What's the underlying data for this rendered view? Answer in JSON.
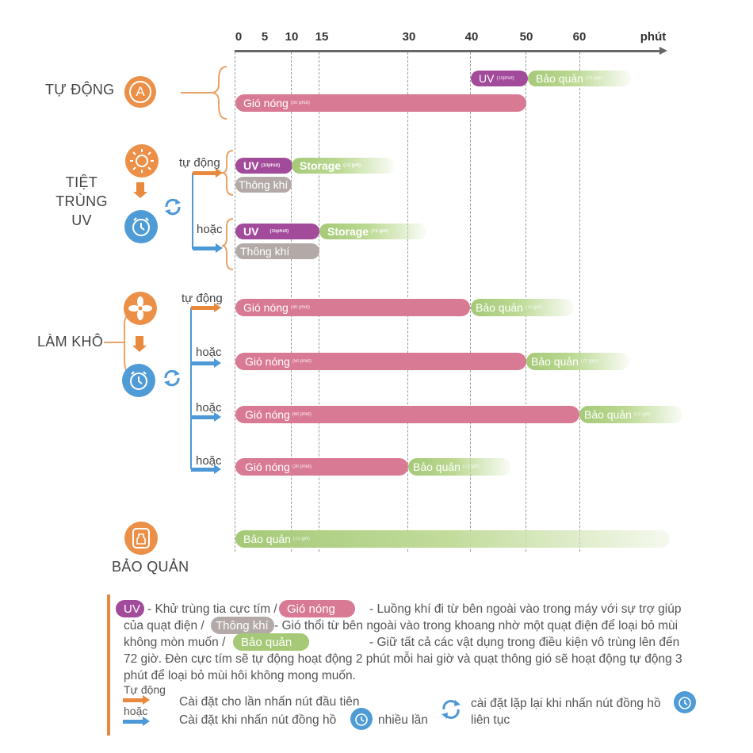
{
  "axis": {
    "ticks": [
      "0",
      "5",
      "10",
      "15",
      "30",
      "40",
      "50",
      "60"
    ],
    "unit": "phút"
  },
  "categories": {
    "auto": "TỰ ĐỘNG",
    "auto_icon_letter": "A",
    "sterilize_line1": "TIỆT TRÙNG",
    "sterilize_line2": "UV",
    "dry": "LÀM KHÔ",
    "storage": "BẢO QUẢN"
  },
  "branch_labels": {
    "auto": "tự động",
    "or": "hoặc"
  },
  "bars": {
    "auto_uv": {
      "label": "UV",
      "sub": "(10phút)"
    },
    "auto_storage": {
      "label": "Bảo quản",
      "sub": "(72 giờ)"
    },
    "auto_hot": {
      "label": "Gió nóng",
      "sub": "(50 phút)"
    },
    "s1_uv": {
      "label": "UV",
      "sub": "(10phút)"
    },
    "s1_storage": {
      "label": "Storage",
      "sub": "(72 giờ)"
    },
    "s1_vent": {
      "label": "Thông khí"
    },
    "s2_uv": {
      "label": "UV",
      "sub": "(15phút)"
    },
    "s2_storage": {
      "label": "Storage",
      "sub": "(72 giờ)"
    },
    "s2_vent": {
      "label": "Thông khí"
    },
    "d1_hot": {
      "label": "Gió nóng",
      "sub": "(40 phút)"
    },
    "d1_storage": {
      "label": "Bảo quản",
      "sub": "(72 giờ)"
    },
    "d2_hot": {
      "label": "Gió nóng",
      "sub": "(50 phút)"
    },
    "d2_storage": {
      "label": "Bảo quản",
      "sub": "(72 giờ)"
    },
    "d3_hot": {
      "label": "Gió nóng",
      "sub": "(60 phút)"
    },
    "d3_storage": {
      "label": "Bảo quản",
      "sub": "(72 giờ)"
    },
    "d4_hot": {
      "label": "Gió nóng",
      "sub": "(30 phút)"
    },
    "d4_storage": {
      "label": "Bảo quản",
      "sub": "(72 giờ)"
    },
    "st_storage": {
      "label": "Bảo quản",
      "sub": "(72 giờ)"
    }
  },
  "legend": {
    "uv_pill": "UV",
    "uv_desc": "- Khử trùng tia cực tím /",
    "hot_pill": "Gió nóng",
    "hot_desc": "- Luồng khí đi từ bên ngoài vào trong máy với sự trợ giúp",
    "line2_a": "của quạt điện /",
    "vent_pill": "Thông khí",
    "vent_desc": "- Gió thổi từ bên ngoài vào trong khoang nhờ một quạt điện để loại bỏ mùi",
    "line3_a": "không mòn muốn /",
    "storage_pill": "Bảo quản",
    "storage_desc": "- Giữ tất cả các vật dụng trong điều kiện vô trùng lên đến",
    "line4": "72 giờ. Đèn cực tím sẽ tự động hoạt động 2 phút mỗi hai giờ và quạt thông gió sẽ hoạt động tự động 3",
    "line5": "phút để loại bỏ mùi hôi không mong muốn.",
    "auto_label": "Tự động",
    "or_label": "hoặc",
    "first_press": "Cài đặt cho lần nhấn nút đầu tiên",
    "clock_press": "Cài đặt khi nhấn nút đồng hồ",
    "many_times": "nhiều lần",
    "repeat_press": "cài đặt lặp lại khi nhấn nút đồng hồ",
    "continuous": "liên tục"
  },
  "colors": {
    "pink": "#d97a94",
    "purple": "#a24b9b",
    "gray": "#b3aaa8",
    "green": "#a5c977",
    "orange": "#ec9048",
    "blue": "#4f9bd6"
  }
}
